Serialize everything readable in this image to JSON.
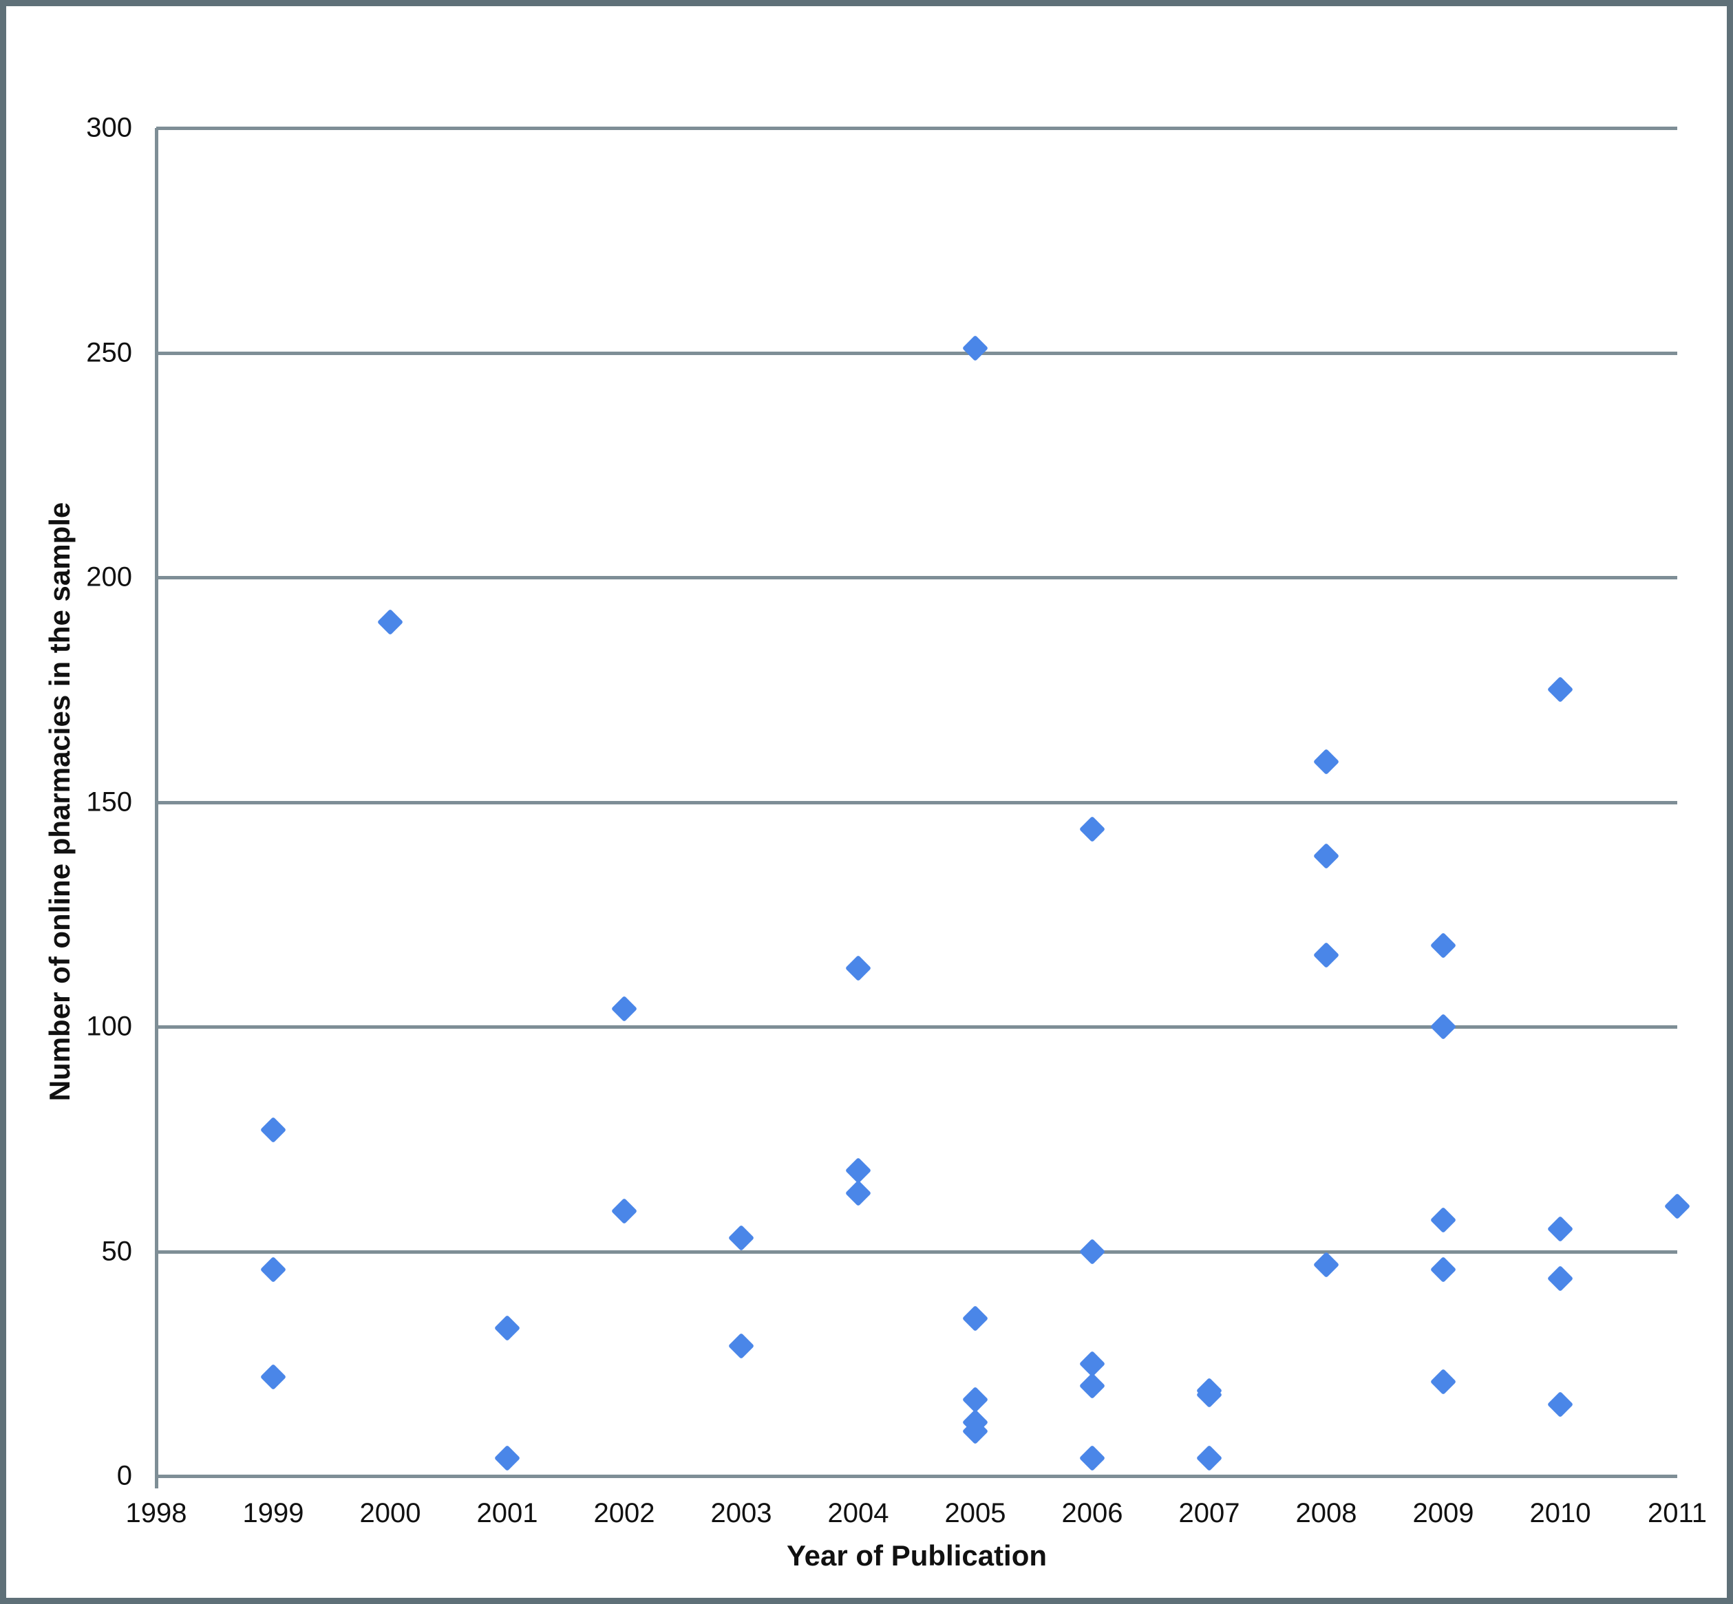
{
  "figure": {
    "x_axis_title": "Year of Publication",
    "y_axis_title": "Number of online pharmacies in the sample"
  },
  "colors": {
    "marker": "#4a86e8",
    "gridline": "#7e8e96",
    "axis": "#7e8e96",
    "border": "#5f7078",
    "text": "#111111"
  },
  "chart_data": {
    "type": "scatter",
    "title": "",
    "xlabel": "Year of Publication",
    "ylabel": "Number of online pharmacies in the sample",
    "x_categories": [
      1998,
      1999,
      2000,
      2001,
      2002,
      2003,
      2004,
      2005,
      2006,
      2007,
      2008,
      2009,
      2010,
      2011
    ],
    "yticks": [
      0,
      50,
      100,
      150,
      200,
      250,
      300
    ],
    "ylim": [
      0,
      300
    ],
    "grid": "horizontal",
    "legend": "none",
    "marker": "diamond",
    "points": [
      {
        "year": 1999,
        "value": 77
      },
      {
        "year": 1999,
        "value": 46
      },
      {
        "year": 1999,
        "value": 22
      },
      {
        "year": 2000,
        "value": 190
      },
      {
        "year": 2001,
        "value": 33
      },
      {
        "year": 2001,
        "value": 4
      },
      {
        "year": 2002,
        "value": 104
      },
      {
        "year": 2002,
        "value": 59
      },
      {
        "year": 2003,
        "value": 53
      },
      {
        "year": 2003,
        "value": 29
      },
      {
        "year": 2004,
        "value": 113
      },
      {
        "year": 2004,
        "value": 68
      },
      {
        "year": 2004,
        "value": 63
      },
      {
        "year": 2005,
        "value": 251
      },
      {
        "year": 2005,
        "value": 35
      },
      {
        "year": 2005,
        "value": 17
      },
      {
        "year": 2005,
        "value": 12
      },
      {
        "year": 2005,
        "value": 10
      },
      {
        "year": 2006,
        "value": 144
      },
      {
        "year": 2006,
        "value": 50
      },
      {
        "year": 2006,
        "value": 25
      },
      {
        "year": 2006,
        "value": 20
      },
      {
        "year": 2006,
        "value": 4
      },
      {
        "year": 2007,
        "value": 19
      },
      {
        "year": 2007,
        "value": 18
      },
      {
        "year": 2007,
        "value": 4
      },
      {
        "year": 2008,
        "value": 159
      },
      {
        "year": 2008,
        "value": 138
      },
      {
        "year": 2008,
        "value": 116
      },
      {
        "year": 2008,
        "value": 47
      },
      {
        "year": 2009,
        "value": 118
      },
      {
        "year": 2009,
        "value": 100
      },
      {
        "year": 2009,
        "value": 57
      },
      {
        "year": 2009,
        "value": 46
      },
      {
        "year": 2009,
        "value": 21
      },
      {
        "year": 2010,
        "value": 175
      },
      {
        "year": 2010,
        "value": 55
      },
      {
        "year": 2010,
        "value": 44
      },
      {
        "year": 2010,
        "value": 16
      },
      {
        "year": 2011,
        "value": 60
      }
    ]
  }
}
